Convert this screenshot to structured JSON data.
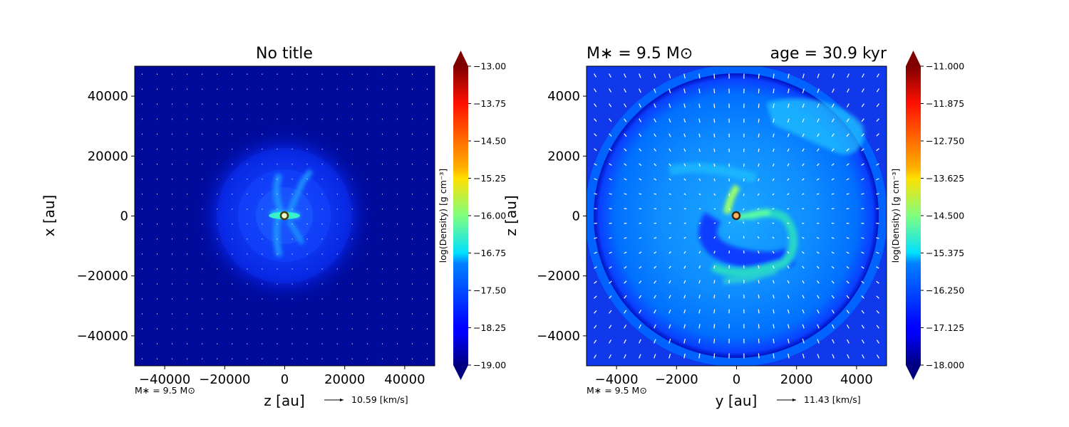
{
  "chart_data": [
    {
      "type": "heatmap",
      "title": "No title",
      "xlabel": "z [au]",
      "ylabel": "x [au]",
      "xlim": [
        -50000,
        50000
      ],
      "ylim": [
        -50000,
        50000
      ],
      "xticks": [
        -40000,
        -20000,
        0,
        20000,
        40000
      ],
      "yticks": [
        -40000,
        -20000,
        0,
        20000,
        40000
      ],
      "xtick_labels": [
        "−40000",
        "−20000",
        "0",
        "20000",
        "40000"
      ],
      "ytick_labels": [
        "−40000",
        "−20000",
        "0",
        "20000",
        "40000"
      ],
      "colorbar": {
        "label": "log(Density) [g cm⁻³]",
        "range": [
          -19.0,
          -13.0
        ],
        "ticks": [
          -13.0,
          -13.75,
          -14.5,
          -15.25,
          -16.0,
          -16.75,
          -17.5,
          -18.25,
          -19.0
        ],
        "tick_labels": [
          "−13.00",
          "−13.75",
          "−14.50",
          "−15.25",
          "−16.00",
          "−16.75",
          "−17.50",
          "−18.25",
          "−19.00"
        ],
        "colormap": "jet",
        "extend": "both"
      },
      "star_label": "M∗ = 9.5 M⊙",
      "vector_key": "10.59 [km/s]",
      "star_position": [
        0,
        0
      ]
    },
    {
      "type": "heatmap",
      "title_left": "M∗ = 9.5 M⊙",
      "title_right": "age = 30.9 kyr",
      "xlabel": "y [au]",
      "ylabel": "z [au]",
      "xlim": [
        -5000,
        5000
      ],
      "ylim": [
        -5000,
        5000
      ],
      "xticks": [
        -4000,
        -2000,
        0,
        2000,
        4000
      ],
      "yticks": [
        -4000,
        -2000,
        0,
        2000,
        4000
      ],
      "xtick_labels": [
        "−4000",
        "−2000",
        "0",
        "2000",
        "4000"
      ],
      "ytick_labels": [
        "−4000",
        "−2000",
        "0",
        "2000",
        "4000"
      ],
      "colorbar": {
        "label": "log(Density) [g cm⁻³]",
        "range": [
          -18.0,
          -11.0
        ],
        "ticks": [
          -11.0,
          -11.875,
          -12.75,
          -13.625,
          -14.5,
          -15.375,
          -16.25,
          -17.125,
          -18.0
        ],
        "tick_labels": [
          "−11.000",
          "−11.875",
          "−12.750",
          "−13.625",
          "−14.500",
          "−15.375",
          "−16.250",
          "−17.125",
          "−18.000"
        ],
        "colormap": "jet",
        "extend": "both"
      },
      "star_label": "M∗ = 9.5 M⊙",
      "vector_key": "11.43 [km/s]",
      "star_position": [
        0,
        0
      ]
    }
  ]
}
